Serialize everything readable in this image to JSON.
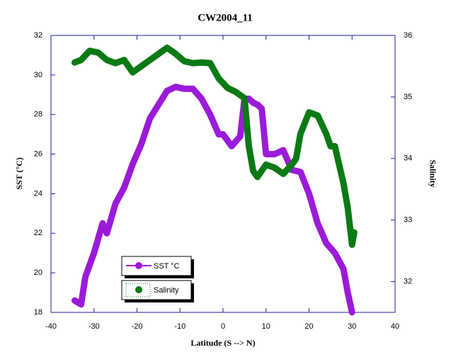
{
  "chart_data": {
    "type": "line",
    "title": "CW2004_11",
    "x_label": "Latitude (S --> N)",
    "y_label": "SST (°C)",
    "y2_label": "Salinity",
    "xlim": [
      -40,
      40
    ],
    "xticks": [
      -40,
      -30,
      -20,
      -10,
      0,
      10,
      20,
      30,
      40
    ],
    "ylim": [
      18,
      32
    ],
    "yticks": [
      18,
      20,
      22,
      24,
      26,
      28,
      30,
      32
    ],
    "y2lim": [
      31.5,
      36
    ],
    "y2ticks": [
      32,
      33,
      34,
      35,
      36
    ],
    "series": [
      {
        "name": "SST °C",
        "color": "#9b1bd8",
        "x": [
          -34.5,
          -33,
          -32,
          -30,
          -28,
          -27,
          -25,
          -23,
          -21,
          -19,
          -17,
          -15,
          -13,
          -11,
          -9,
          -7,
          -5,
          -3,
          -1,
          0,
          2,
          4,
          5,
          6,
          7,
          8,
          9,
          10,
          12,
          14,
          16,
          18,
          20,
          22,
          24,
          26,
          28,
          29,
          30
        ],
        "values": [
          18.6,
          18.4,
          19.8,
          21,
          22.5,
          22,
          23.5,
          24.3,
          25.5,
          26.5,
          27.8,
          28.5,
          29.2,
          29.4,
          29.3,
          29.3,
          28.8,
          28,
          27,
          27,
          26.4,
          26.9,
          28.8,
          28.8,
          28.6,
          28.5,
          28.3,
          26,
          26,
          26.2,
          25.2,
          25.1,
          24,
          22.5,
          21.5,
          21,
          20.2,
          19,
          18
        ]
      },
      {
        "name": "Salinity",
        "color": "#0a7a14",
        "axis": "y2",
        "x": [
          -34.5,
          -33,
          -31,
          -29,
          -27,
          -25,
          -23,
          -21,
          -19,
          -17,
          -15,
          -13,
          -11,
          -9,
          -7,
          -5,
          -3,
          -1,
          1,
          3,
          5,
          6,
          7,
          8,
          10,
          12,
          14,
          16,
          17,
          18,
          20,
          22,
          24,
          25,
          26,
          27,
          28,
          29,
          30,
          30.5
        ],
        "values": [
          35.56,
          35.6,
          35.75,
          35.72,
          35.6,
          35.55,
          35.6,
          35.4,
          35.5,
          35.6,
          35.7,
          35.8,
          35.7,
          35.58,
          35.55,
          35.56,
          35.55,
          35.3,
          35.15,
          35.08,
          34.98,
          34.2,
          33.8,
          33.7,
          33.9,
          33.85,
          33.75,
          33.9,
          34,
          34.4,
          34.75,
          34.7,
          34.4,
          34.2,
          34.2,
          33.9,
          33.6,
          33.2,
          32.6,
          32.8
        ]
      }
    ]
  }
}
